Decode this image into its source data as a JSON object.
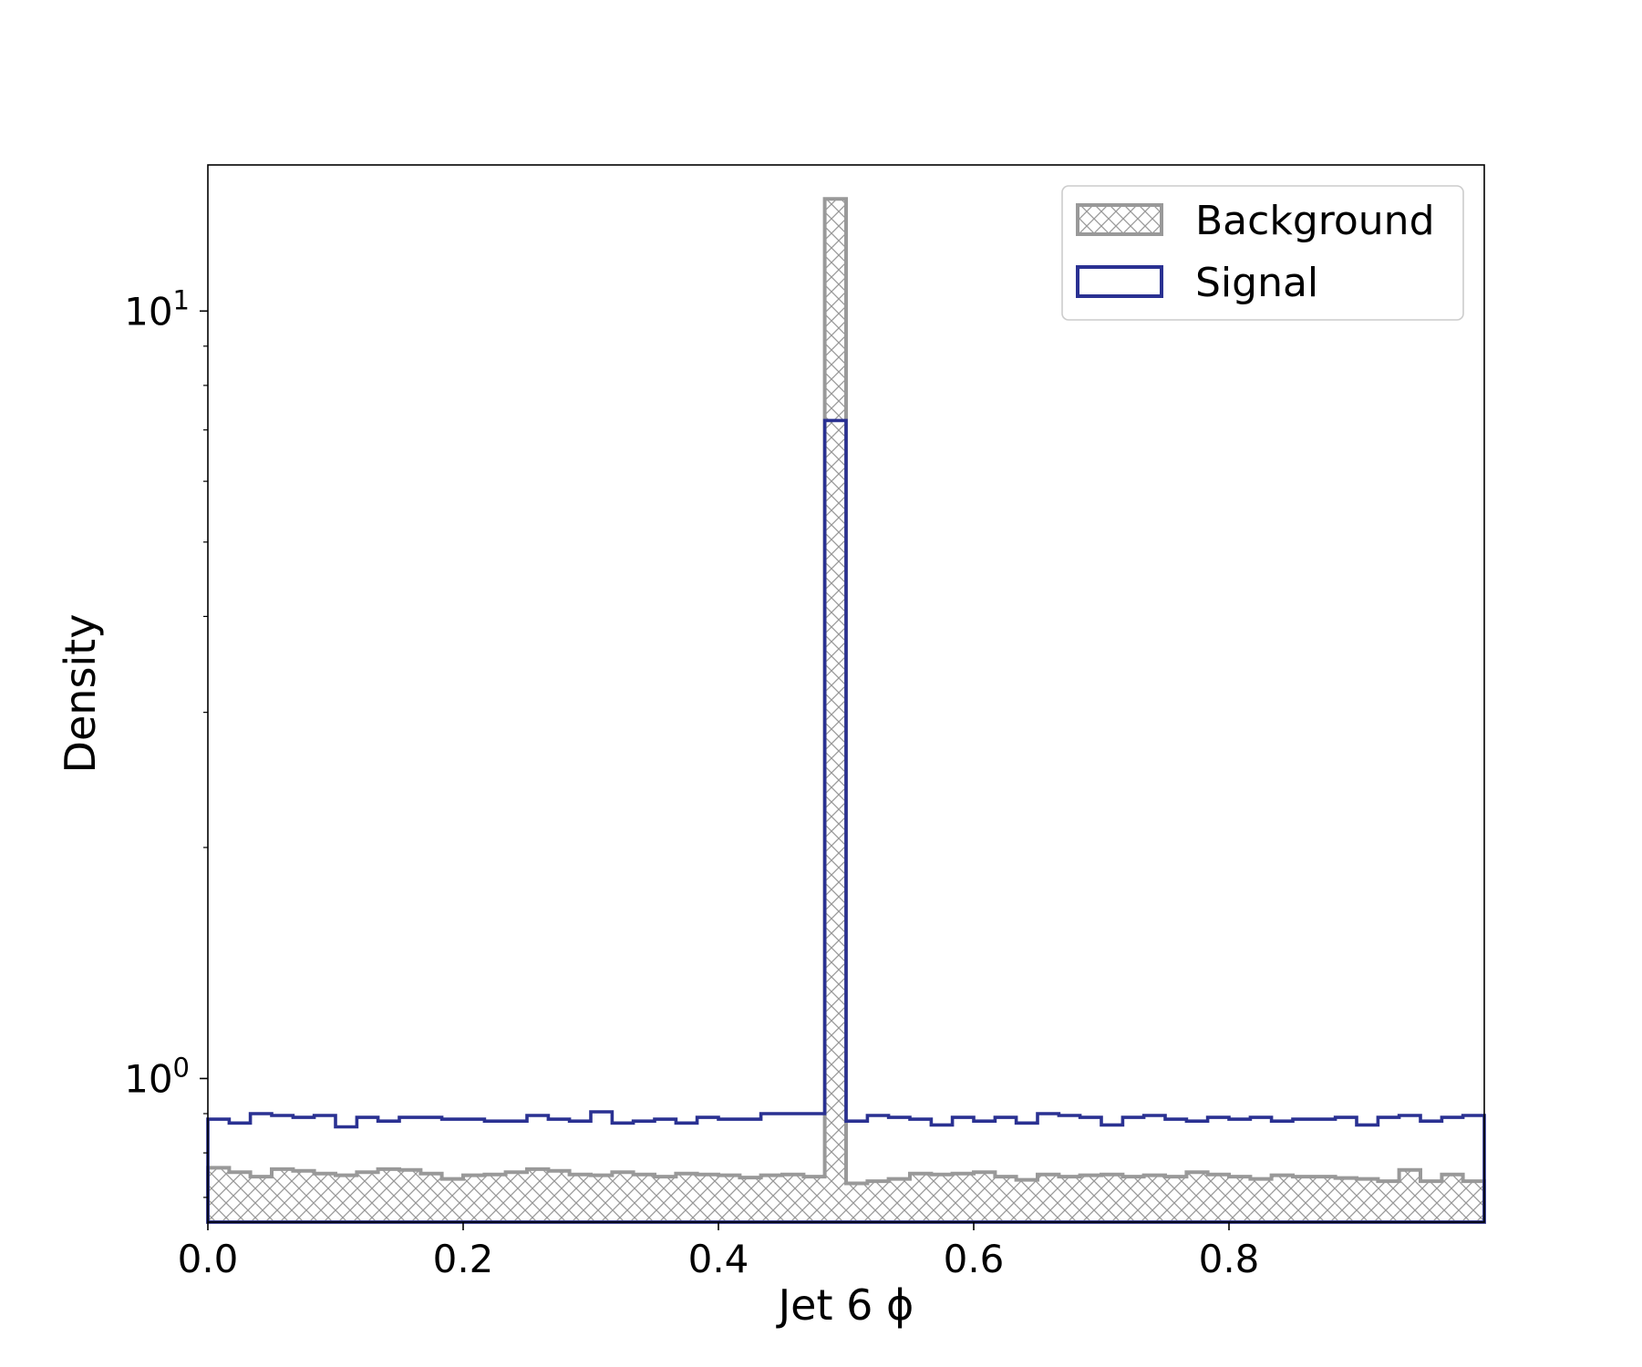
{
  "chart_data": {
    "type": "histogram",
    "xlabel": "Jet 6 ϕ",
    "ylabel": "Density",
    "yscale": "log",
    "xlim": [
      0.0,
      1.0
    ],
    "ylim": [
      0.65,
      15.5
    ],
    "grid": false,
    "legend_position": "top-right",
    "x_ticks": [
      {
        "value": 0.0,
        "label": "0.0"
      },
      {
        "value": 0.2,
        "label": "0.2"
      },
      {
        "value": 0.4,
        "label": "0.4"
      },
      {
        "value": 0.6,
        "label": "0.6"
      },
      {
        "value": 0.8,
        "label": "0.8"
      }
    ],
    "y_ticks": [
      {
        "value": 1,
        "base": "10",
        "exp": "0"
      },
      {
        "value": 10,
        "base": "10",
        "exp": "1"
      }
    ],
    "bin_edges": [
      0.0,
      0.0167,
      0.0333,
      0.05,
      0.0667,
      0.0833,
      0.1,
      0.1167,
      0.1333,
      0.15,
      0.1667,
      0.1833,
      0.2,
      0.2167,
      0.2333,
      0.25,
      0.2667,
      0.2833,
      0.3,
      0.3167,
      0.3333,
      0.35,
      0.3667,
      0.3833,
      0.4,
      0.4167,
      0.4333,
      0.45,
      0.4667,
      0.4833,
      0.5,
      0.5167,
      0.5333,
      0.55,
      0.5667,
      0.5833,
      0.6,
      0.6167,
      0.6333,
      0.65,
      0.6667,
      0.6833,
      0.7,
      0.7167,
      0.7333,
      0.75,
      0.7667,
      0.7833,
      0.8,
      0.8167,
      0.8333,
      0.85,
      0.8667,
      0.8833,
      0.9,
      0.9167,
      0.9333,
      0.95,
      0.9667,
      0.9833,
      1.0
    ],
    "series": [
      {
        "name": "Background",
        "style": "hatched",
        "color": "#999999",
        "values": [
          0.765,
          0.755,
          0.745,
          0.762,
          0.758,
          0.752,
          0.748,
          0.755,
          0.762,
          0.76,
          0.752,
          0.74,
          0.748,
          0.75,
          0.755,
          0.762,
          0.758,
          0.75,
          0.748,
          0.755,
          0.75,
          0.745,
          0.752,
          0.75,
          0.748,
          0.743,
          0.748,
          0.75,
          0.745,
          14.0,
          0.73,
          0.735,
          0.74,
          0.752,
          0.75,
          0.752,
          0.755,
          0.745,
          0.738,
          0.75,
          0.745,
          0.748,
          0.75,
          0.745,
          0.748,
          0.745,
          0.755,
          0.75,
          0.745,
          0.74,
          0.748,
          0.745,
          0.745,
          0.742,
          0.74,
          0.735,
          0.76,
          0.735,
          0.75,
          0.735
        ]
      },
      {
        "name": "Signal",
        "style": "step",
        "color": "#2a3192",
        "values": [
          0.885,
          0.875,
          0.9,
          0.895,
          0.89,
          0.895,
          0.865,
          0.89,
          0.88,
          0.89,
          0.89,
          0.885,
          0.885,
          0.88,
          0.88,
          0.895,
          0.885,
          0.88,
          0.905,
          0.875,
          0.88,
          0.885,
          0.875,
          0.89,
          0.885,
          0.885,
          0.9,
          0.9,
          0.9,
          7.2,
          0.88,
          0.895,
          0.89,
          0.885,
          0.87,
          0.89,
          0.88,
          0.89,
          0.875,
          0.9,
          0.895,
          0.89,
          0.87,
          0.89,
          0.895,
          0.885,
          0.88,
          0.89,
          0.885,
          0.89,
          0.88,
          0.885,
          0.885,
          0.89,
          0.87,
          0.89,
          0.895,
          0.88,
          0.89,
          0.895
        ]
      }
    ]
  }
}
